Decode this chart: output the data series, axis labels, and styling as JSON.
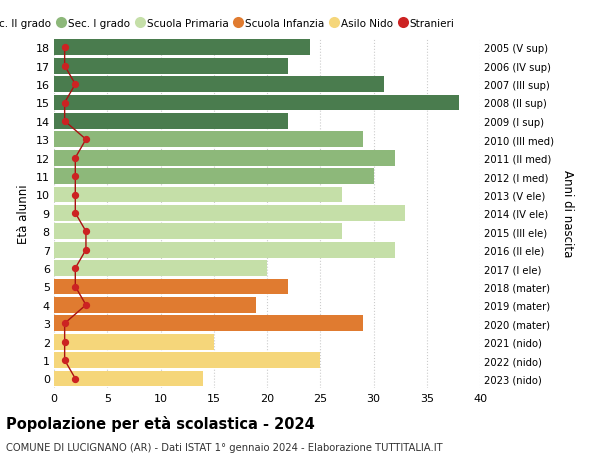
{
  "ages": [
    18,
    17,
    16,
    15,
    14,
    13,
    12,
    11,
    10,
    9,
    8,
    7,
    6,
    5,
    4,
    3,
    2,
    1,
    0
  ],
  "right_labels": [
    "2005 (V sup)",
    "2006 (IV sup)",
    "2007 (III sup)",
    "2008 (II sup)",
    "2009 (I sup)",
    "2010 (III med)",
    "2011 (II med)",
    "2012 (I med)",
    "2013 (V ele)",
    "2014 (IV ele)",
    "2015 (III ele)",
    "2016 (II ele)",
    "2017 (I ele)",
    "2018 (mater)",
    "2019 (mater)",
    "2020 (mater)",
    "2021 (nido)",
    "2022 (nido)",
    "2023 (nido)"
  ],
  "bar_values": [
    24,
    22,
    31,
    38,
    22,
    29,
    32,
    30,
    27,
    33,
    27,
    32,
    20,
    22,
    19,
    29,
    15,
    25,
    14
  ],
  "bar_colors": [
    "#4a7c4e",
    "#4a7c4e",
    "#4a7c4e",
    "#4a7c4e",
    "#4a7c4e",
    "#8db87a",
    "#8db87a",
    "#8db87a",
    "#c5dfa8",
    "#c5dfa8",
    "#c5dfa8",
    "#c5dfa8",
    "#c5dfa8",
    "#e07b30",
    "#e07b30",
    "#e07b30",
    "#f5d67a",
    "#f5d67a",
    "#f5d67a"
  ],
  "stranieri_values": [
    1,
    1,
    2,
    1,
    1,
    3,
    2,
    2,
    2,
    2,
    3,
    3,
    2,
    2,
    3,
    1,
    1,
    1,
    2
  ],
  "legend_labels": [
    "Sec. II grado",
    "Sec. I grado",
    "Scuola Primaria",
    "Scuola Infanzia",
    "Asilo Nido",
    "Stranieri"
  ],
  "legend_colors": [
    "#4a7c4e",
    "#8db87a",
    "#c5dfa8",
    "#e07b30",
    "#f5d67a",
    "#cc2222"
  ],
  "ylabel_left": "Età alunni",
  "ylabel_right": "Anni di nascita",
  "title": "Popolazione per età scolastica - 2024",
  "subtitle": "COMUNE DI LUCIGNANO (AR) - Dati ISTAT 1° gennaio 2024 - Elaborazione TUTTITALIA.IT",
  "xlim": [
    0,
    40
  ],
  "xticks": [
    0,
    5,
    10,
    15,
    20,
    25,
    30,
    35,
    40
  ],
  "background_color": "#ffffff",
  "grid_color": "#cccccc"
}
